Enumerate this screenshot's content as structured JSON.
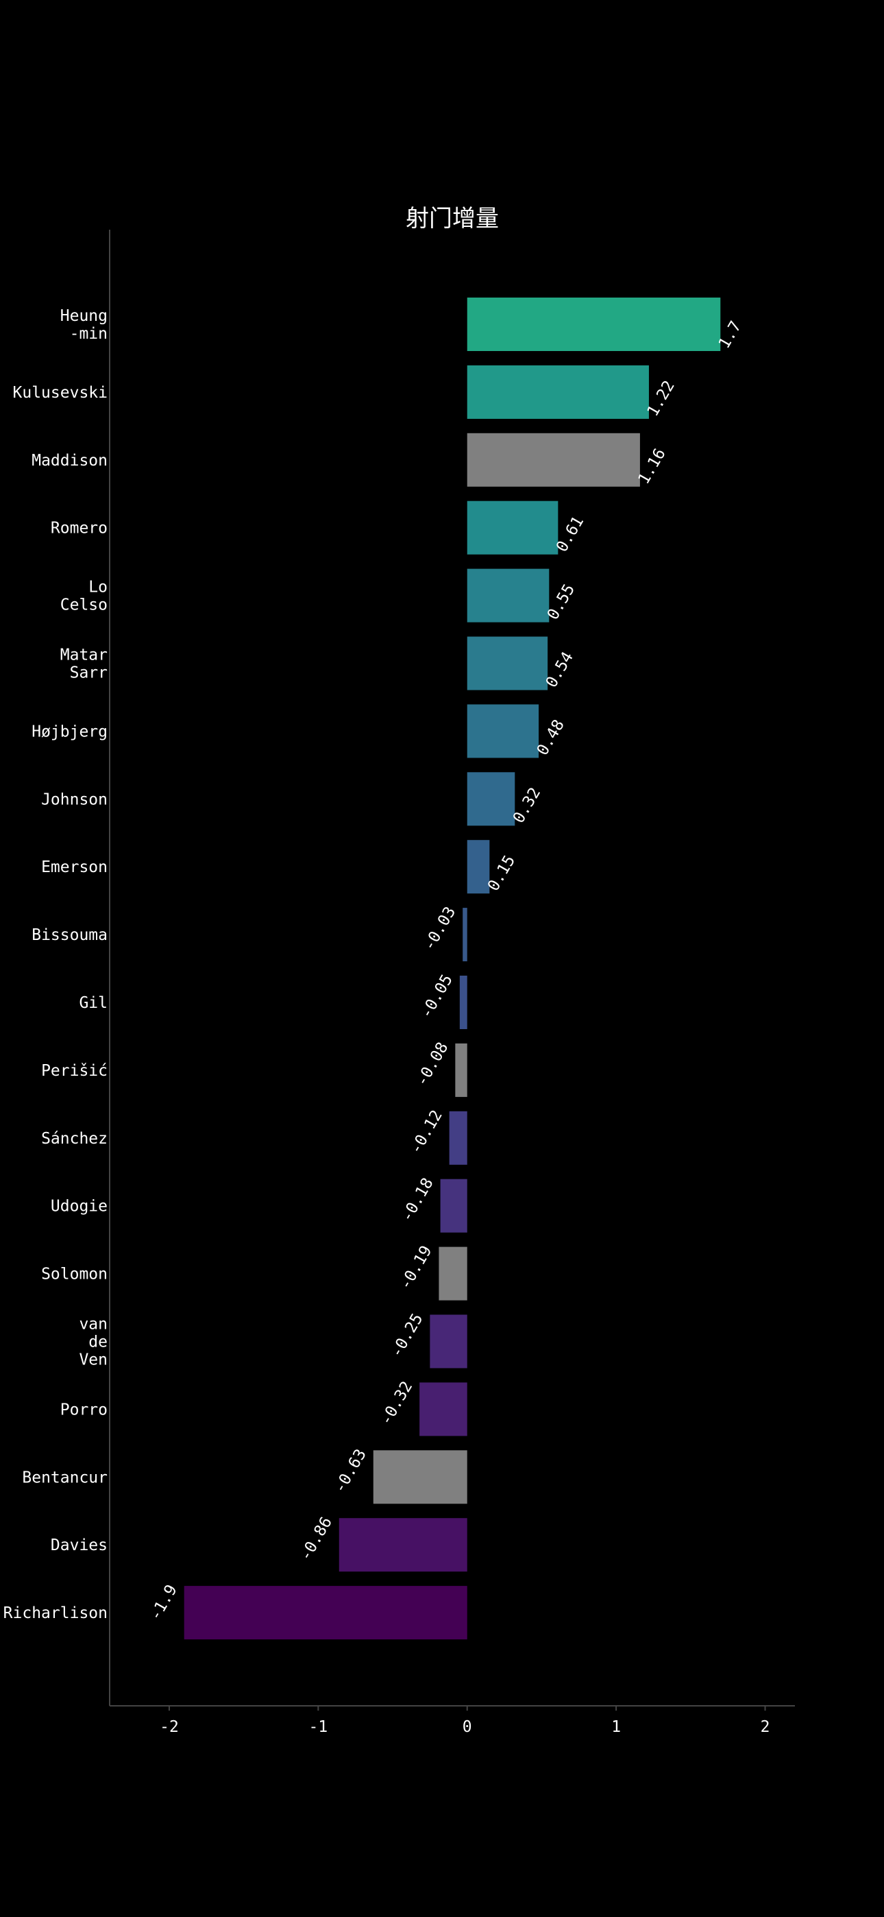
{
  "chart_data": {
    "type": "bar",
    "orientation": "horizontal",
    "title": "射门增量",
    "xlabel": "",
    "ylabel": "",
    "xlim": [
      -2.4,
      2.2
    ],
    "xticks": [
      "-2",
      "-1",
      "0",
      "1",
      "2"
    ],
    "xtick_values": [
      -2,
      -1,
      0,
      1,
      2
    ],
    "grid": false,
    "legend": "none",
    "background": "#000000",
    "highlight_gray": "#808080",
    "categories": [
      "Heung\n-min",
      "Kulusevski",
      "Maddison",
      "Romero",
      "Lo\nCelso",
      "Matar\nSarr",
      "Højbjerg",
      "Johnson",
      "Emerson",
      "Bissouma",
      "Gil",
      "Perišić",
      "Sánchez",
      "Udogie",
      "Solomon",
      "van\nde\nVen",
      "Porro",
      "Bentancur",
      "Davies",
      "Richarlison"
    ],
    "values": [
      1.7,
      1.22,
      1.16,
      0.61,
      0.55,
      0.54,
      0.48,
      0.32,
      0.15,
      -0.03,
      -0.05,
      -0.08,
      -0.12,
      -0.18,
      -0.19,
      -0.25,
      -0.32,
      -0.63,
      -0.86,
      -1.9
    ],
    "data_labels": [
      "1.7",
      "1.22",
      "1.16",
      "0.61",
      "0.55",
      "0.54",
      "0.48",
      "0.32",
      "0.15",
      "-0.03",
      "-0.05",
      "-0.08",
      "-0.12",
      "-0.18",
      "-0.19",
      "-0.25",
      "-0.32",
      "-0.63",
      "-0.86",
      "-1.9"
    ],
    "colors": [
      "#22a884",
      "#21998a",
      "#808080",
      "#228c8d",
      "#27828e",
      "#2b7b8e",
      "#2d738e",
      "#306a8e",
      "#34618d",
      "#38598c",
      "#3b518b",
      "#808080",
      "#433e85",
      "#46337e",
      "#808080",
      "#482777",
      "#481f70",
      "#808080",
      "#471164",
      "#440154"
    ]
  }
}
